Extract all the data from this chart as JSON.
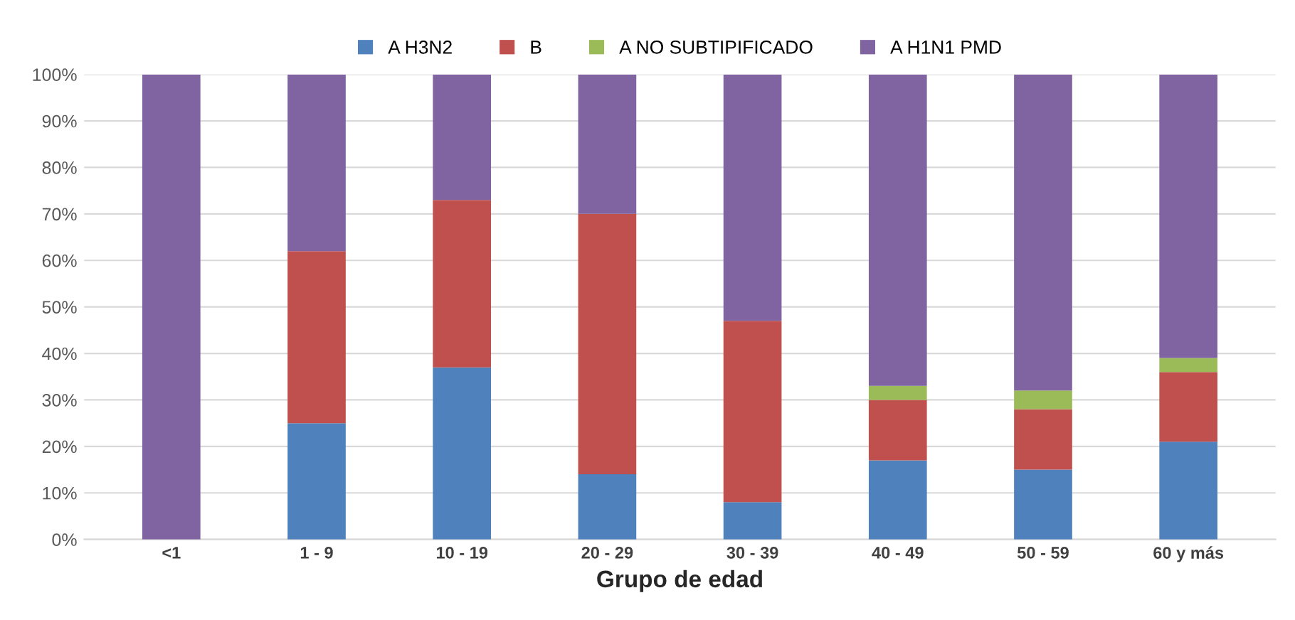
{
  "chart_data": {
    "type": "bar",
    "stacked": true,
    "xlabel": "Grupo de edad",
    "categories": [
      "<1",
      "1 - 9",
      "10 - 19",
      "20 - 29",
      "30 - 39",
      "40 - 49",
      "50 - 59",
      "60 y más"
    ],
    "series": [
      {
        "name": "A H3N2",
        "color": "#4f81bd",
        "values": [
          0,
          25,
          37,
          14,
          8,
          17,
          15,
          21
        ]
      },
      {
        "name": "B",
        "color": "#c0504d",
        "values": [
          0,
          37,
          36,
          56,
          39,
          13,
          13,
          15
        ]
      },
      {
        "name": "A NO SUBTIPIFICADO",
        "color": "#9bbb59",
        "values": [
          0,
          0,
          0,
          0,
          0,
          3,
          4,
          3
        ]
      },
      {
        "name": "A H1N1 PMD",
        "color": "#8064a2",
        "values": [
          100,
          38,
          27,
          30,
          53,
          67,
          68,
          61
        ]
      }
    ],
    "ylim": [
      0,
      100
    ],
    "yticks": [
      {
        "value": 0,
        "label": "0%"
      },
      {
        "value": 10,
        "label": "10%"
      },
      {
        "value": 20,
        "label": "20%"
      },
      {
        "value": 30,
        "label": "30%"
      },
      {
        "value": 40,
        "label": "40%"
      },
      {
        "value": 50,
        "label": "50%"
      },
      {
        "value": 60,
        "label": "60%"
      },
      {
        "value": 70,
        "label": "70%"
      },
      {
        "value": 80,
        "label": "80%"
      },
      {
        "value": 90,
        "label": "90%"
      },
      {
        "value": 100,
        "label": "100%"
      }
    ],
    "grid": "y",
    "legend": "top"
  }
}
